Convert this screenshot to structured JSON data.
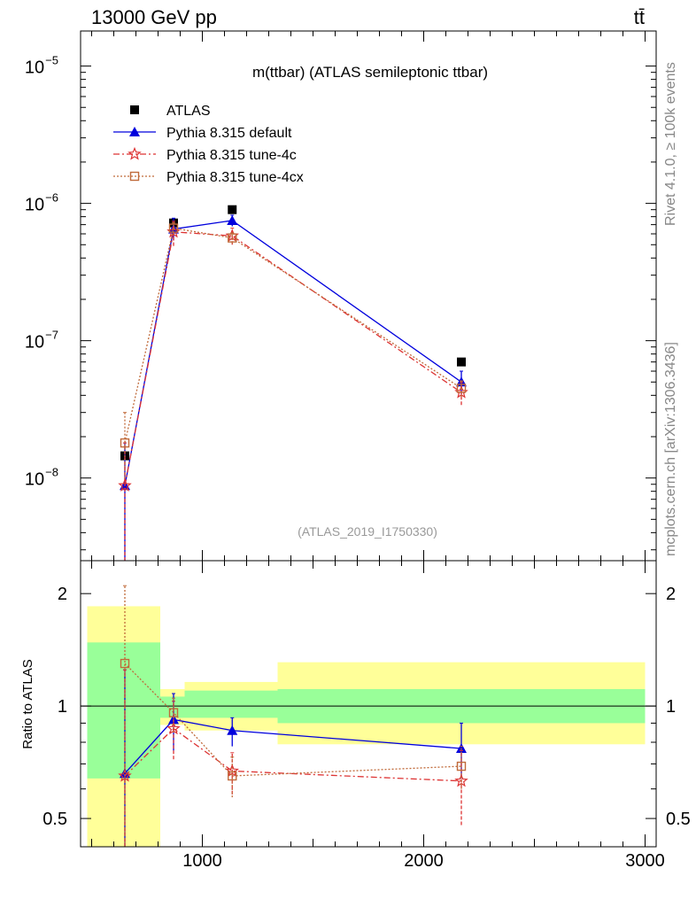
{
  "header": {
    "energy_label": "13000 GeV pp",
    "process_label": "tt̄"
  },
  "side_text": {
    "rivet_label": "Rivet 4.1.0, ≥ 100k events",
    "source_label": "mcplots.cern.ch [arXiv:1306.3436]"
  },
  "colors": {
    "atlas": "#000000",
    "default": "#0000dd",
    "tune4c": "#dd3333",
    "tune4cx": "#c06a3a",
    "band_inner": "#99ff99",
    "band_outer": "#ffff99"
  },
  "chart_data": [
    {
      "type": "scatter",
      "title": "m(ttbar) (ATLAS semileptonic ttbar)",
      "analysis_label": "(ATLAS_2019_I1750330)",
      "yscale": "log",
      "xlim": [
        450,
        3050
      ],
      "ylim": [
        2.5e-09,
        1.8e-05
      ],
      "y_ticks": [
        {
          "value": 1e-08,
          "base": "10",
          "exp": "−8"
        },
        {
          "value": 1e-07,
          "base": "10",
          "exp": "−7"
        },
        {
          "value": 1e-06,
          "base": "10",
          "exp": "−6"
        },
        {
          "value": 1e-05,
          "base": "10",
          "exp": "−5"
        }
      ],
      "legend_position": "top-left",
      "series": [
        {
          "name": "ATLAS",
          "key": "atlas",
          "marker": "filled-square",
          "line": "none",
          "points": [
            {
              "x": 650,
              "y": 1.45e-08
            },
            {
              "x": 870,
              "y": 7.2e-07
            },
            {
              "x": 1135,
              "y": 9e-07
            },
            {
              "x": 2170,
              "y": 7e-08
            }
          ]
        },
        {
          "name": "Pythia 8.315 default",
          "key": "default",
          "marker": "triangle",
          "line": "solid",
          "points": [
            {
              "x": 650,
              "y": 8.8e-09,
              "lo": 2.5e-09,
              "hi": 1.8e-08
            },
            {
              "x": 870,
              "y": 6.5e-07,
              "lo": 5.4e-07,
              "hi": 7.8e-07
            },
            {
              "x": 1135,
              "y": 7.5e-07,
              "lo": 6.8e-07,
              "hi": 8.2e-07
            },
            {
              "x": 2170,
              "y": 5e-08,
              "lo": 4.1e-08,
              "hi": 6e-08
            }
          ]
        },
        {
          "name": "Pythia 8.315 tune-4c",
          "key": "tune4c",
          "marker": "star",
          "line": "dashdot",
          "points": [
            {
              "x": 650,
              "y": 8.8e-09,
              "lo": 2.5e-09,
              "hi": 1.8e-08
            },
            {
              "x": 870,
              "y": 6.2e-07,
              "lo": 4.9e-07,
              "hi": 7.4e-07
            },
            {
              "x": 1135,
              "y": 5.8e-07,
              "lo": 5e-07,
              "hi": 6.6e-07
            },
            {
              "x": 2170,
              "y": 4.2e-08,
              "lo": 3.4e-08,
              "hi": 5e-08
            }
          ]
        },
        {
          "name": "Pythia 8.315 tune-4cx",
          "key": "tune4cx",
          "marker": "open-square",
          "line": "dotted",
          "points": [
            {
              "x": 650,
              "y": 1.8e-08,
              "lo": 1e-08,
              "hi": 3e-08
            },
            {
              "x": 870,
              "y": 6.6e-07,
              "lo": 6e-07,
              "hi": 7.2e-07
            },
            {
              "x": 1135,
              "y": 5.6e-07,
              "lo": 5.1e-07,
              "hi": 6.1e-07
            },
            {
              "x": 2170,
              "y": 4.5e-08,
              "lo": 3.9e-08,
              "hi": 5.1e-08
            }
          ]
        }
      ]
    },
    {
      "type": "scatter",
      "title": "",
      "ylabel": "Ratio to ATLAS",
      "yscale": "log",
      "xlim": [
        450,
        3050
      ],
      "ylim": [
        0.42,
        2.45
      ],
      "x_ticks": [
        {
          "value": 1000,
          "label": "1000"
        },
        {
          "value": 2000,
          "label": "2000"
        },
        {
          "value": 3000,
          "label": "3000"
        }
      ],
      "y_ticks": [
        {
          "value": 0.5,
          "label": "0.5"
        },
        {
          "value": 1,
          "label": "1"
        },
        {
          "value": 2,
          "label": "2"
        }
      ],
      "reference_line": 1,
      "bands": [
        {
          "x0": 480,
          "x1": 810,
          "inner": [
            0.64,
            1.48
          ],
          "outer": [
            0.41,
            1.85
          ]
        },
        {
          "x0": 810,
          "x1": 920,
          "inner": [
            0.93,
            1.06
          ],
          "outer": [
            0.89,
            1.11
          ]
        },
        {
          "x0": 920,
          "x1": 1340,
          "inner": [
            0.93,
            1.1
          ],
          "outer": [
            0.86,
            1.16
          ]
        },
        {
          "x0": 1340,
          "x1": 3000,
          "inner": [
            0.9,
            1.11
          ],
          "outer": [
            0.79,
            1.31
          ]
        }
      ],
      "series": [
        {
          "name": "Pythia 8.315 default",
          "key": "default",
          "marker": "triangle",
          "line": "solid",
          "points": [
            {
              "x": 650,
              "y": 0.66,
              "lo": 0.42,
              "hi": 1.25
            },
            {
              "x": 870,
              "y": 0.92,
              "lo": 0.76,
              "hi": 1.08
            },
            {
              "x": 1135,
              "y": 0.86,
              "lo": 0.78,
              "hi": 0.93
            },
            {
              "x": 2170,
              "y": 0.77,
              "lo": 0.64,
              "hi": 0.9
            }
          ]
        },
        {
          "name": "Pythia 8.315 tune-4c",
          "key": "tune4c",
          "marker": "star",
          "line": "dashdot",
          "points": [
            {
              "x": 650,
              "y": 0.65,
              "lo": 0.42,
              "hi": 1.25
            },
            {
              "x": 870,
              "y": 0.87,
              "lo": 0.72,
              "hi": 1.03
            },
            {
              "x": 1135,
              "y": 0.67,
              "lo": 0.58,
              "hi": 0.75
            },
            {
              "x": 2170,
              "y": 0.63,
              "lo": 0.48,
              "hi": 0.76
            }
          ]
        },
        {
          "name": "Pythia 8.315 tune-4cx",
          "key": "tune4cx",
          "marker": "open-square",
          "line": "dotted",
          "points": [
            {
              "x": 650,
              "y": 1.3,
              "lo": 0.42,
              "hi": 2.1
            },
            {
              "x": 870,
              "y": 0.96,
              "lo": 0.85,
              "hi": 1.05
            },
            {
              "x": 1135,
              "y": 0.65,
              "lo": 0.57,
              "hi": 0.73
            },
            {
              "x": 2170,
              "y": 0.69,
              "lo": 0.6,
              "hi": 0.78
            }
          ]
        }
      ]
    }
  ]
}
